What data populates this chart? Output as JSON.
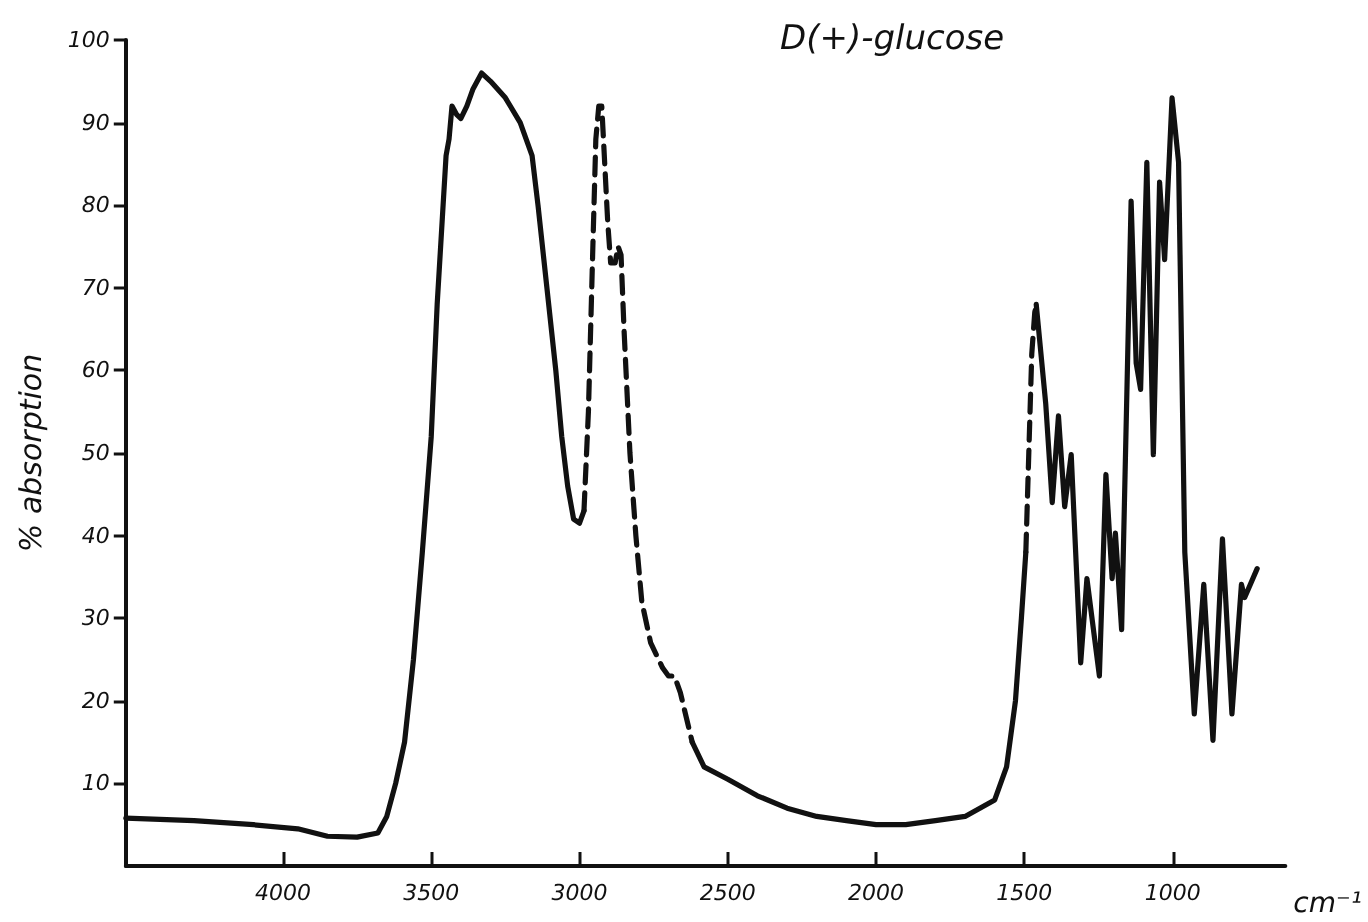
{
  "chart_data": {
    "type": "line",
    "title": "D(+)-glucose",
    "xlabel": "cm⁻¹",
    "ylabel": "% absorption",
    "xlim": [
      4530,
      620
    ],
    "xticks": [
      4000,
      3500,
      3000,
      2500,
      2000,
      1500,
      1000
    ],
    "ylim": [
      0,
      100
    ],
    "yticks": [
      10,
      20,
      30,
      40,
      50,
      60,
      70,
      80,
      90,
      100
    ],
    "grid": false,
    "marker": "none",
    "series": [
      {
        "color": "#111111",
        "line_style": "solid",
        "x": [
          4530,
          4300,
          4100,
          3950,
          3850,
          3750,
          3680,
          3650,
          3620,
          3590,
          3560,
          3530,
          3500,
          3480,
          3460,
          3450,
          3440,
          3430,
          3415,
          3400,
          3380,
          3360,
          3330,
          3300,
          3250,
          3200,
          3160,
          3140,
          3110,
          3080,
          3060,
          3040,
          3020,
          3000,
          2985
        ],
        "values": [
          5.8,
          5.5,
          5,
          4.5,
          3.6,
          3.5,
          4,
          6,
          10,
          15,
          25,
          38,
          52,
          68,
          80,
          86,
          88,
          92,
          91,
          90.5,
          92,
          94,
          96,
          95,
          93,
          90,
          86,
          80,
          70,
          60,
          52,
          46,
          42,
          41.5,
          43
        ]
      },
      {
        "color": "#111111",
        "line_style": "dashed",
        "x": [
          2985,
          2970,
          2955,
          2945,
          2935,
          2925,
          2915,
          2905,
          2895,
          2880,
          2870,
          2860,
          2850,
          2830,
          2810,
          2790,
          2760,
          2720,
          2700,
          2680,
          2660,
          2640,
          2620
        ],
        "values": [
          43,
          55,
          75,
          88,
          92,
          92,
          85,
          78,
          73,
          73,
          75,
          74,
          65,
          50,
          40,
          32,
          27,
          24,
          23,
          23,
          21,
          18,
          15
        ]
      },
      {
        "color": "#111111",
        "line_style": "solid",
        "x": [
          2620,
          2580,
          2500,
          2400,
          2300,
          2200,
          2100,
          2000,
          1900,
          1800,
          1700,
          1600,
          1560,
          1530,
          1510,
          1495
        ],
        "values": [
          15,
          12,
          10.5,
          8.5,
          7,
          6,
          5.5,
          5,
          5,
          5.5,
          6,
          8,
          12,
          20,
          30,
          38
        ]
      },
      {
        "color": "#111111",
        "line_style": "dashed",
        "x": [
          1495,
          1485,
          1475,
          1465,
          1460
        ],
        "values": [
          38,
          50,
          62,
          67,
          68
        ]
      },
      {
        "color": "#111111",
        "line_style": "solid",
        "x": [
          1460,
          1428,
          1406,
          1385,
          1364,
          1342,
          1310,
          1289,
          1247,
          1225,
          1204,
          1193,
          1172,
          1140,
          1123,
          1108,
          1087,
          1065,
          1044,
          1027,
          1002,
          980,
          959,
          927,
          895,
          864,
          832,
          800,
          768,
          757,
          715
        ],
        "values": [
          68,
          56,
          44,
          54.5,
          43.5,
          49.8,
          24.6,
          34.8,
          23,
          47.4,
          34.8,
          40.3,
          28.6,
          80.5,
          60.9,
          57.7,
          85.2,
          49.8,
          82.8,
          73.4,
          93,
          85.2,
          38,
          18.4,
          34.1,
          15.2,
          39.6,
          18.4,
          34.1,
          32.5,
          36
        ]
      }
    ]
  }
}
